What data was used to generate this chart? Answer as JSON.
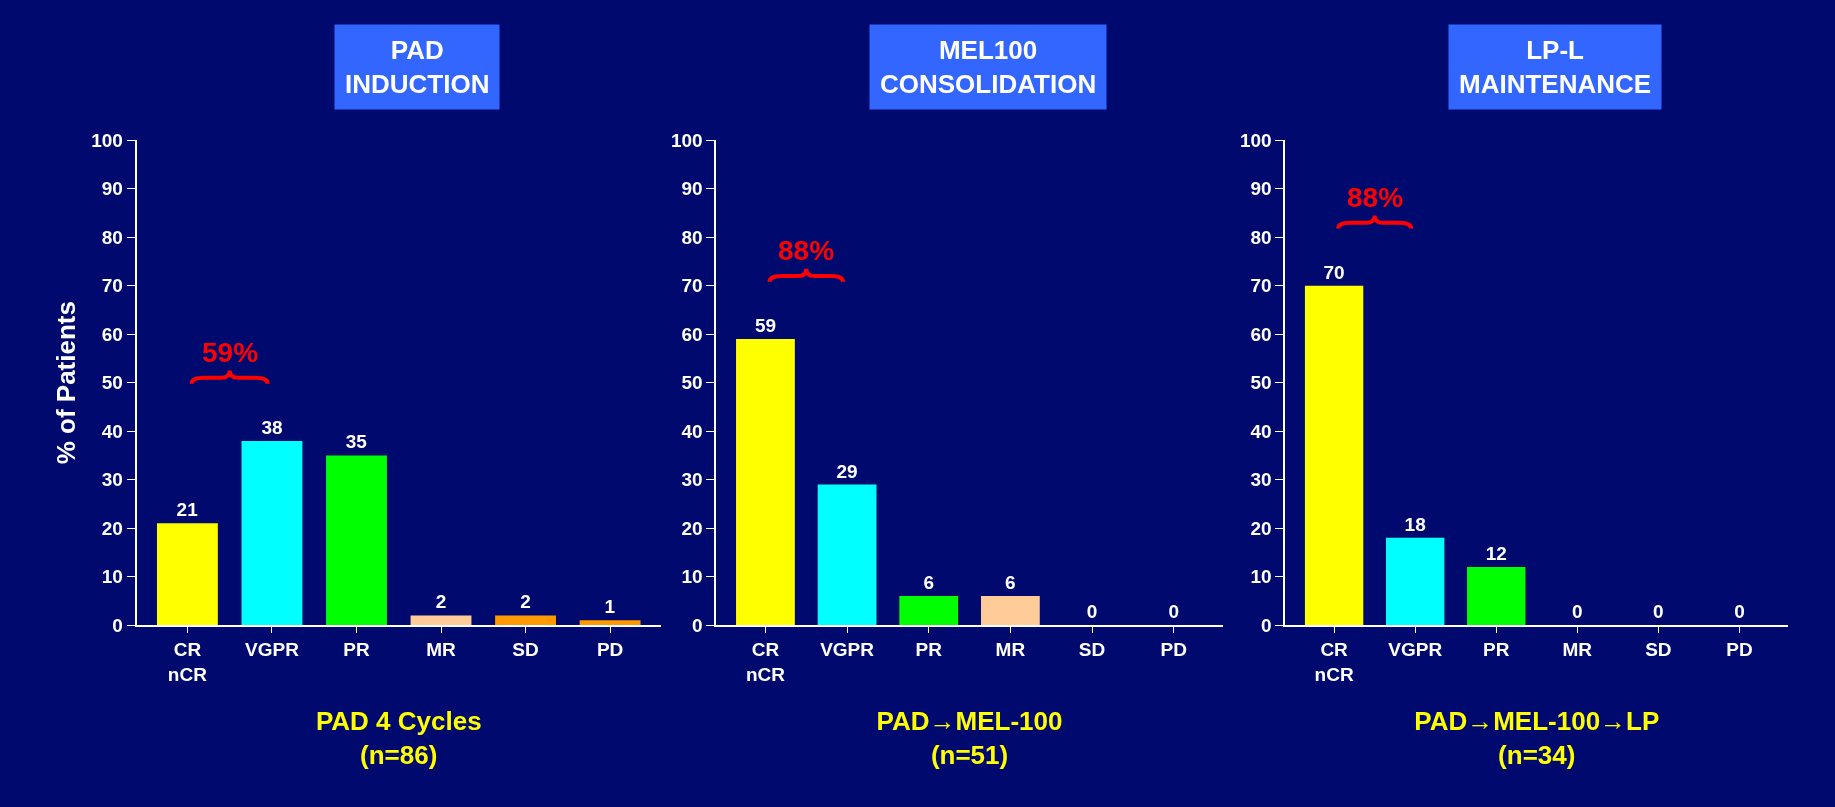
{
  "chart_data": [
    {
      "type": "bar",
      "title": "PAD\nINDUCTION",
      "xlabel": "PAD 4 Cycles\n(n=86)",
      "ylabel": "% of Patients",
      "categories": [
        "CR\nnCR",
        "VGPR",
        "PR",
        "MR",
        "SD",
        "PD"
      ],
      "values": [
        21,
        38,
        35,
        2,
        2,
        1
      ],
      "colors": [
        "#ffff00",
        "#00ffff",
        "#00ff00",
        "#ffcc99",
        "#ff9900",
        "#ff9900"
      ],
      "data_labels": true,
      "ylim": [
        0,
        100
      ],
      "yticks": [
        0,
        10,
        20,
        30,
        40,
        50,
        60,
        70,
        80,
        90,
        100
      ],
      "grid": false,
      "annotations": [
        "59%"
      ]
    },
    {
      "type": "bar",
      "title": "MEL100\nCONSOLIDATION",
      "xlabel": "PAD→MEL-100\n(n=51)",
      "categories": [
        "CR\nnCR",
        "VGPR",
        "PR",
        "MR",
        "SD",
        "PD"
      ],
      "values": [
        59,
        29,
        6,
        6,
        0,
        0
      ],
      "colors": [
        "#ffff00",
        "#00ffff",
        "#00ff00",
        "#ffcc99",
        "#ff9900",
        "#ff9900"
      ],
      "data_labels": true,
      "ylim": [
        0,
        100
      ],
      "yticks": [
        0,
        10,
        20,
        30,
        40,
        50,
        60,
        70,
        80,
        90,
        100
      ],
      "grid": false,
      "annotations": [
        "88%"
      ]
    },
    {
      "type": "bar",
      "title": "LP-L\nMAINTENANCE",
      "xlabel": "PAD→MEL-100→LP\n(n=34)",
      "categories": [
        "CR\nnCR",
        "VGPR",
        "PR",
        "MR",
        "SD",
        "PD"
      ],
      "values": [
        70,
        18,
        12,
        0,
        0,
        0
      ],
      "colors": [
        "#ffff00",
        "#00ffff",
        "#00ff00",
        "#ffcc99",
        "#ff9900",
        "#ff9900"
      ],
      "data_labels": true,
      "ylim": [
        0,
        100
      ],
      "yticks": [
        0,
        10,
        20,
        30,
        40,
        50,
        60,
        70,
        80,
        90,
        100
      ],
      "grid": false,
      "annotations": [
        "88%"
      ]
    }
  ]
}
